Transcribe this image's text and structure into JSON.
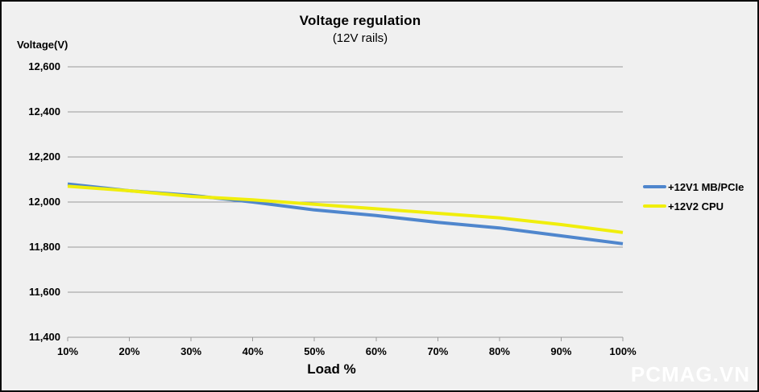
{
  "watermark": "PCMAG.VN",
  "chart_data": {
    "type": "line",
    "title": "Voltage regulation",
    "subtitle": "(12V rails)",
    "xlabel": "Load %",
    "ylabel": "Voltage(V)",
    "x_categories": [
      "10%",
      "20%",
      "30%",
      "40%",
      "50%",
      "60%",
      "70%",
      "80%",
      "90%",
      "100%"
    ],
    "y_ticks": [
      "12,600",
      "12,400",
      "12,200",
      "12,000",
      "11,800",
      "11,600",
      "11,400"
    ],
    "ylim": [
      11400,
      12600
    ],
    "grid": "horizontal",
    "legend_position": "right",
    "series": [
      {
        "name": "+12V1 MB/PCIe",
        "color": "#4f86cd",
        "values": [
          12080,
          12050,
          12030,
          12000,
          11965,
          11940,
          11910,
          11885,
          11850,
          11815
        ]
      },
      {
        "name": "+12V2 CPU",
        "color": "#f0ee0c",
        "values": [
          12070,
          12050,
          12025,
          12010,
          11990,
          11970,
          11950,
          11930,
          11900,
          11865
        ]
      }
    ],
    "colors": {
      "background": "#f0f0f0",
      "border": "#0a0a0a",
      "gridline": "#9a9a9a",
      "text": "#000000",
      "watermark": "#ffffff"
    }
  }
}
